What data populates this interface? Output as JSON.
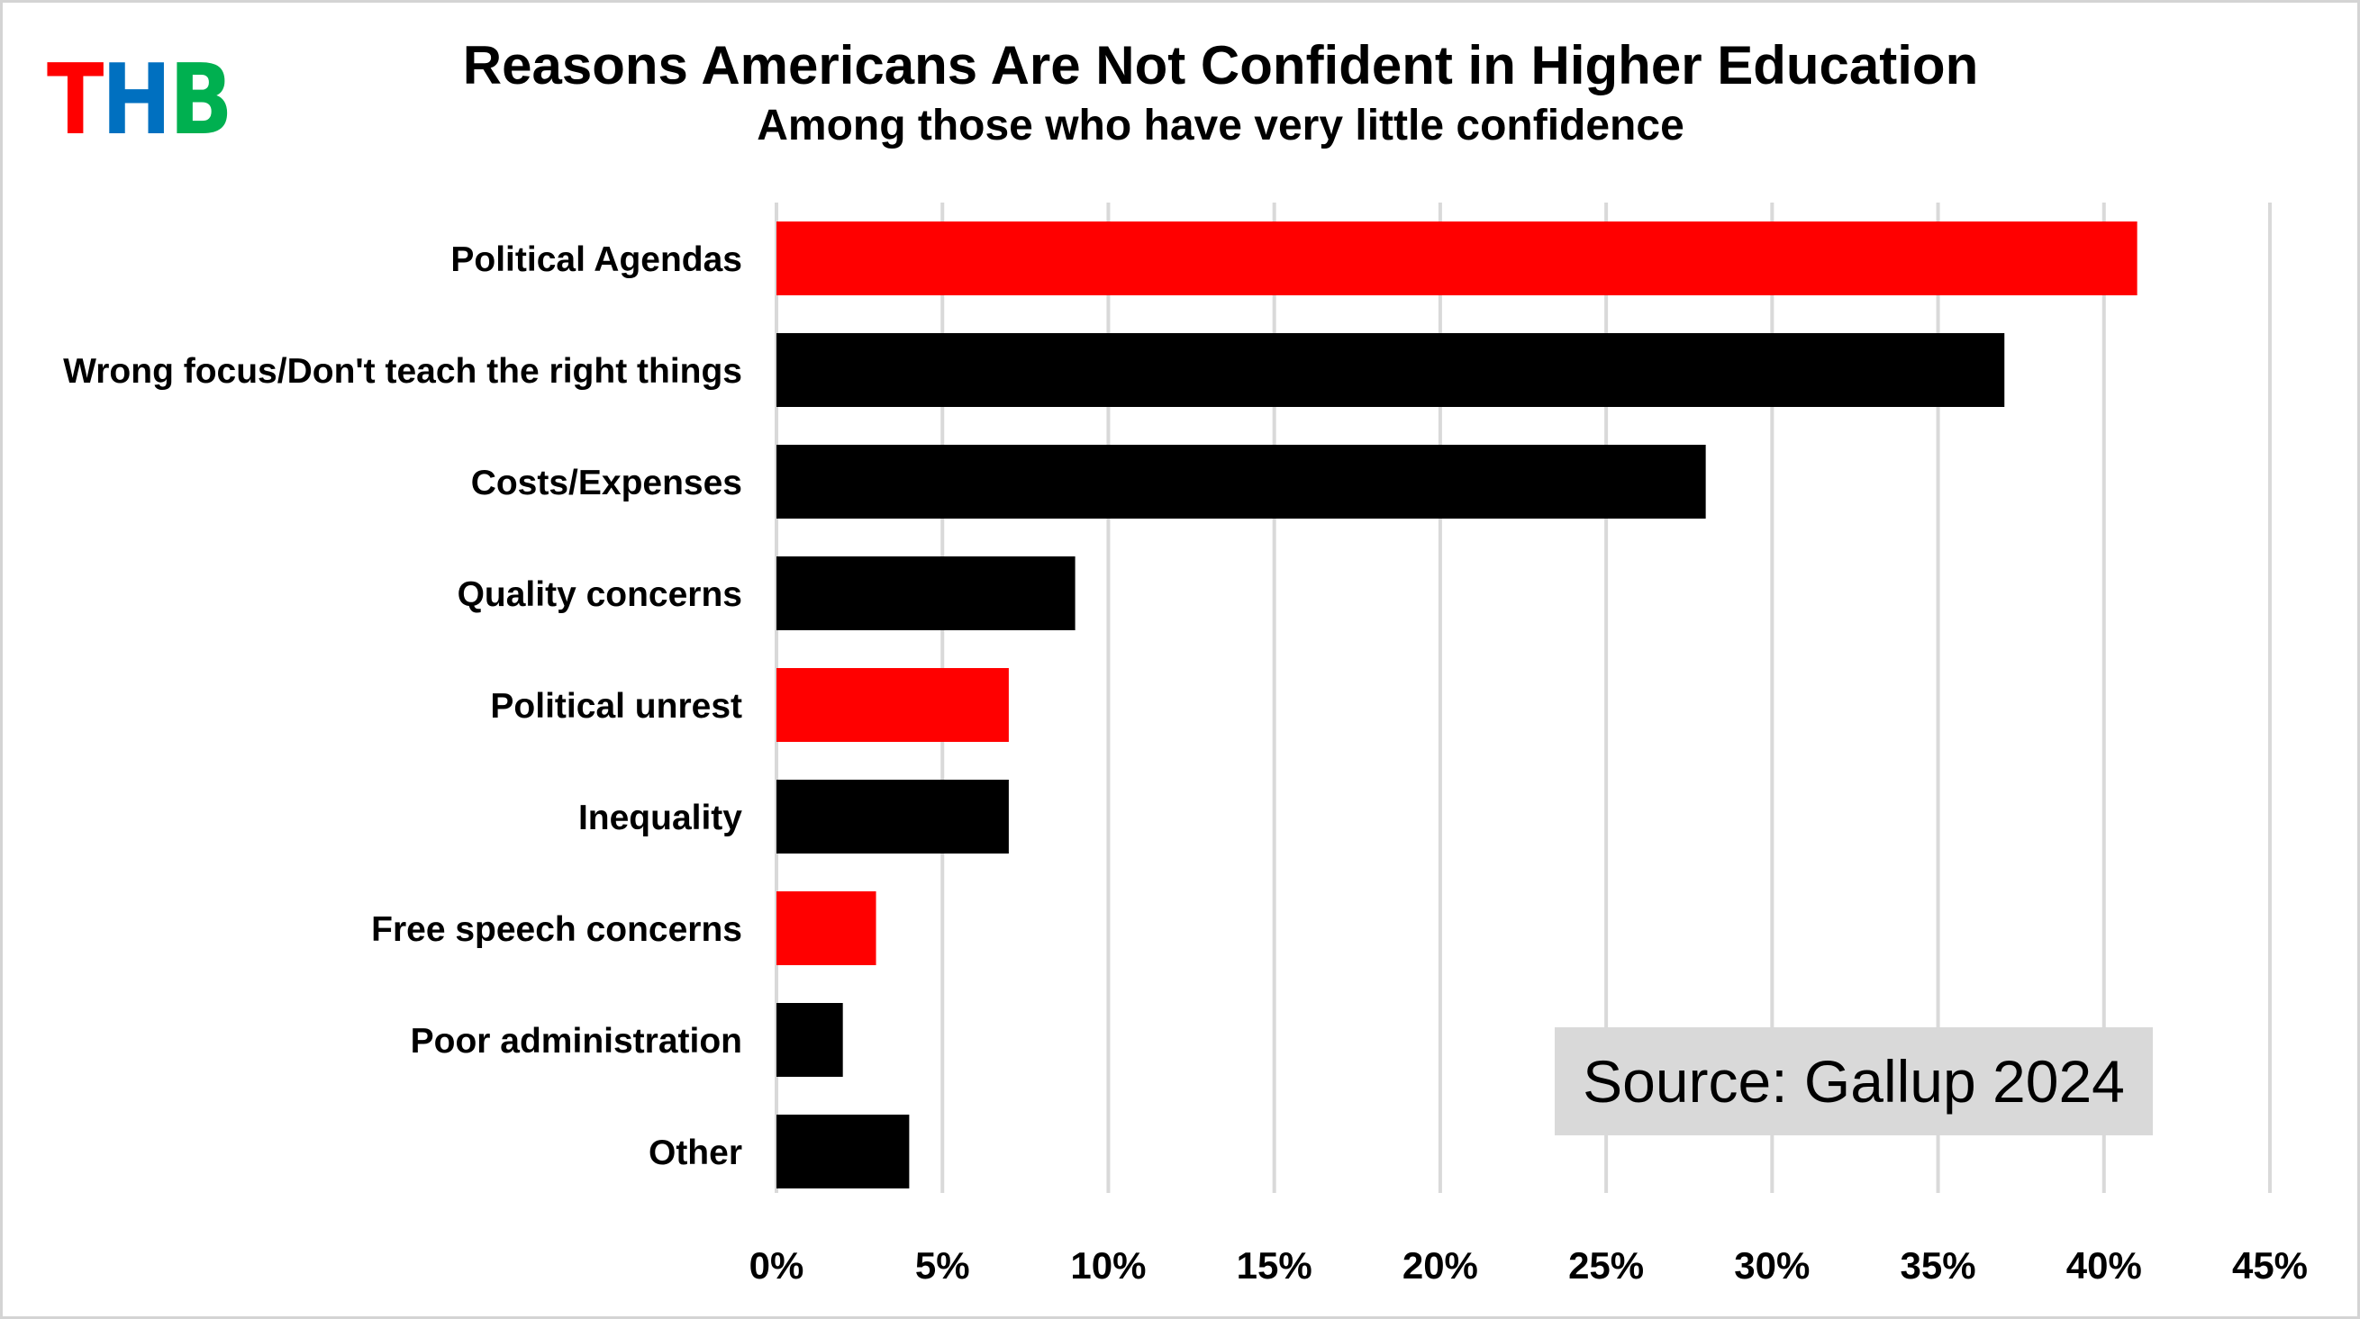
{
  "logo": {
    "letters": [
      "T",
      "H",
      "B"
    ],
    "colors": [
      "#ff0000",
      "#0070c0",
      "#00b050"
    ]
  },
  "title": "Reasons Americans Are Not Confident in Higher Education",
  "subtitle": "Among those who have very little confidence",
  "source": "Source: Gallup 2024",
  "colors": {
    "highlight": "#ff0000",
    "default": "#000000",
    "grid": "#d9d9d9"
  },
  "chart_data": {
    "type": "bar",
    "orientation": "horizontal",
    "title": "Reasons Americans Are Not Confident in Higher Education",
    "subtitle": "Among those who have very little confidence",
    "xlabel": "",
    "ylabel": "",
    "xlim": [
      0,
      45
    ],
    "x_ticks": [
      0,
      5,
      10,
      15,
      20,
      25,
      30,
      35,
      40,
      45
    ],
    "x_tick_labels": [
      "0%",
      "5%",
      "10%",
      "15%",
      "20%",
      "25%",
      "30%",
      "35%",
      "40%",
      "45%"
    ],
    "grid": "vertical",
    "categories": [
      "Political Agendas",
      "Wrong focus/Don't teach the right things",
      "Costs/Expenses",
      "Quality concerns",
      "Political unrest",
      "Inequality",
      "Free speech concerns",
      "Poor administration",
      "Other"
    ],
    "values": [
      41,
      37,
      28,
      9,
      7,
      7,
      3,
      2,
      4
    ],
    "highlighted": [
      true,
      false,
      false,
      false,
      true,
      false,
      true,
      false,
      false
    ]
  }
}
